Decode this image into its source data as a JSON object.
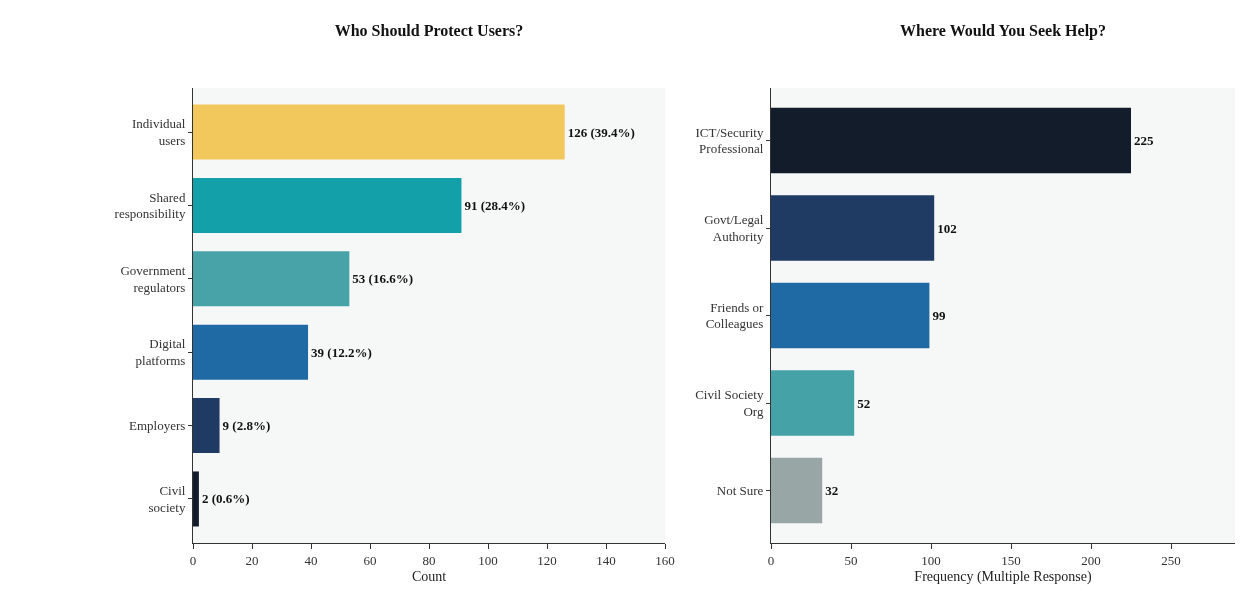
{
  "chart_data": [
    {
      "type": "bar",
      "orientation": "horizontal",
      "title": "Who Should Protect Users?",
      "xlabel": "Count",
      "categories": [
        "Individual users",
        "Shared responsibility",
        "Government regulators",
        "Digital platforms",
        "Employers",
        "Civil society"
      ],
      "values": [
        126,
        91,
        53,
        39,
        9,
        2
      ],
      "colors": [
        "#f2c75c",
        "#14a0a8",
        "#47a3a8",
        "#1f6aa5",
        "#1f3a63",
        "#131c2b"
      ],
      "value_labels": [
        "126 (39.4%)",
        "91 (28.4%)",
        "53 (16.6%)",
        "39 (12.2%)",
        "9 (2.8%)",
        "2 (0.6%)"
      ],
      "xlim": [
        0,
        160
      ],
      "xticks": [
        0,
        20,
        40,
        60,
        80,
        100,
        120,
        140,
        160
      ],
      "grid": false
    },
    {
      "type": "bar",
      "orientation": "horizontal",
      "title": "Where Would You Seek Help?",
      "xlabel": "Frequency (Multiple Response)",
      "categories": [
        "ICT/Security Professional",
        "Govt/Legal Authority",
        "Friends or Colleagues",
        "Civil Society Org",
        "Not Sure"
      ],
      "values": [
        225,
        102,
        99,
        52,
        32
      ],
      "colors": [
        "#131c2b",
        "#1f3a63",
        "#1f6aa5",
        "#45a3a8",
        "#98a6a6"
      ],
      "data_labels": true,
      "xlim": [
        0,
        290
      ],
      "xticks": [
        0,
        50,
        100,
        150,
        200,
        250
      ],
      "grid": false
    }
  ]
}
